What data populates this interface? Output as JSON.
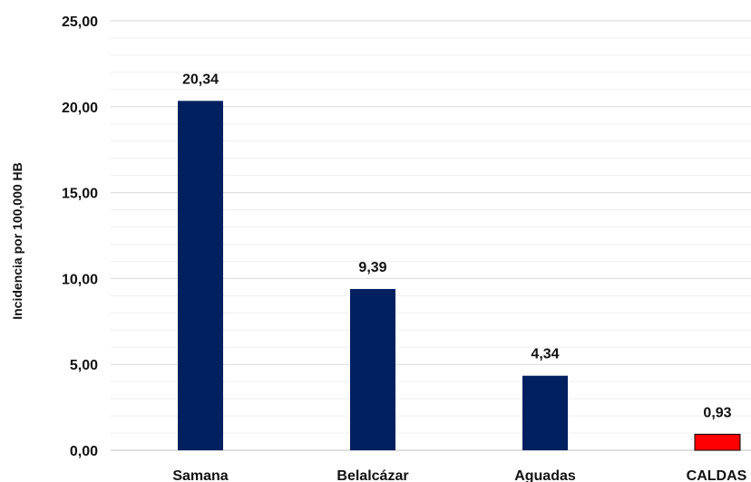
{
  "chart_data": {
    "type": "bar",
    "title": "",
    "xlabel": "",
    "ylabel": "Incidencia por 100,000 HB",
    "categories": [
      "Samana",
      "Belalcázar",
      "Aguadas",
      "CALDAS"
    ],
    "values": [
      20.34,
      9.39,
      4.34,
      0.93
    ],
    "data_labels": [
      "20,34",
      "9,39",
      "4,34",
      "0,93"
    ],
    "bar_colors": [
      "#002060",
      "#002060",
      "#002060",
      "#ff0000"
    ],
    "ylim": [
      0,
      25
    ],
    "yticks": [
      0,
      5,
      10,
      15,
      20,
      25
    ],
    "ytick_labels": [
      "0,00",
      "5,00",
      "10,00",
      "15,00",
      "20,00",
      "25,00"
    ],
    "grid": true,
    "legend": false
  }
}
